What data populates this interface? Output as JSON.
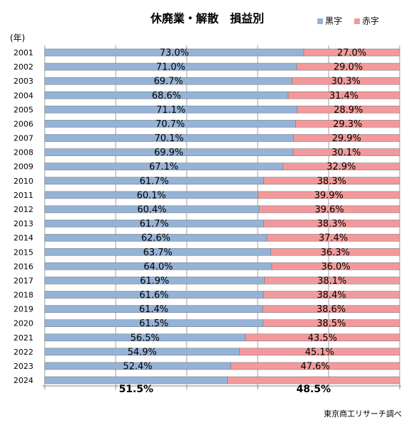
{
  "chart_data": {
    "type": "stacked_bar_horizontal_percent",
    "title": "休廃業・解散　損益別",
    "y_label": "(年)",
    "source": "東京商工リサーチ調べ",
    "categories": [
      "2001",
      "2002",
      "2003",
      "2004",
      "2005",
      "2006",
      "2007",
      "2008",
      "2009",
      "2010",
      "2011",
      "2012",
      "2013",
      "2014",
      "2015",
      "2016",
      "2017",
      "2018",
      "2019",
      "2020",
      "2021",
      "2022",
      "2023",
      "2024"
    ],
    "series": [
      {
        "name": "黒字",
        "color": "#95b3d7",
        "values": [
          73.0,
          71.0,
          69.7,
          68.6,
          71.1,
          70.7,
          70.1,
          69.9,
          67.1,
          61.7,
          60.1,
          60.4,
          61.7,
          62.6,
          63.7,
          64.0,
          61.9,
          61.6,
          61.4,
          61.5,
          56.5,
          54.9,
          52.4,
          51.5
        ],
        "value_labels": [
          "73.0%",
          "71.0%",
          "69.7%",
          "68.6%",
          "71.1%",
          "70.7%",
          "70.1%",
          "69.9%",
          "67.1%",
          "61.7%",
          "60.1%",
          "60.4%",
          "61.7%",
          "62.6%",
          "63.7%",
          "64.0%",
          "61.9%",
          "61.6%",
          "61.4%",
          "61.5%",
          "56.5%",
          "54.9%",
          "52.4%",
          "51.5%"
        ]
      },
      {
        "name": "赤字",
        "color": "#f4999b",
        "values": [
          27.0,
          29.0,
          30.3,
          31.4,
          28.9,
          29.3,
          29.9,
          30.1,
          32.9,
          38.3,
          39.9,
          39.6,
          38.3,
          37.4,
          36.3,
          36.0,
          38.1,
          38.4,
          38.6,
          38.5,
          43.5,
          45.1,
          47.6,
          48.5
        ],
        "value_labels": [
          "27.0%",
          "29.0%",
          "30.3%",
          "31.4%",
          "28.9%",
          "29.3%",
          "29.9%",
          "30.1%",
          "32.9%",
          "38.3%",
          "39.9%",
          "39.6%",
          "38.3%",
          "37.4%",
          "36.3%",
          "36.0%",
          "38.1%",
          "38.4%",
          "38.6%",
          "38.5%",
          "43.5%",
          "45.1%",
          "47.6%",
          "48.5%"
        ]
      }
    ],
    "xlim": [
      0,
      100
    ],
    "xticks": [
      0,
      20,
      40,
      60,
      80,
      100
    ],
    "grid": true,
    "legend": "top-right"
  }
}
